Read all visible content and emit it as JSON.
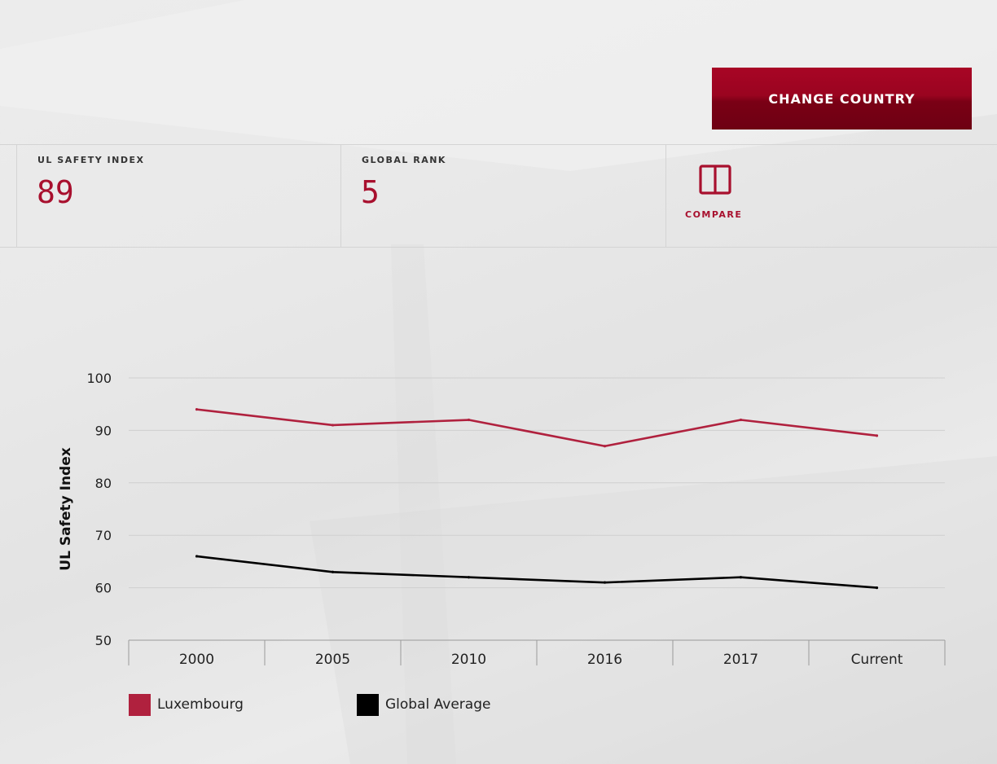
{
  "header": {
    "change_country_label": "CHANGE COUNTRY"
  },
  "stats": {
    "safety_index_label": "UL SAFETY INDEX",
    "safety_index_value": "89",
    "global_rank_label": "GLOBAL RANK",
    "global_rank_value": "5",
    "compare_label": "COMPARE"
  },
  "colors": {
    "accent": "#a8102e",
    "button_top": "#a80525",
    "button_bottom": "#6e0013",
    "luxembourg_line": "#b0213e",
    "global_line": "#000000"
  },
  "icons": {
    "compare": "compare-icon"
  },
  "chart_data": {
    "type": "line",
    "title": "",
    "xlabel": "",
    "ylabel": "UL Safety Index",
    "categories": [
      "2000",
      "2005",
      "2010",
      "2016",
      "2017",
      "Current"
    ],
    "ylim": [
      50,
      100
    ],
    "yticks": [
      "100",
      "90",
      "80",
      "70",
      "60",
      "50"
    ],
    "grid": true,
    "legend_position": "bottom-left",
    "series": [
      {
        "name": "Luxembourg",
        "values": [
          94,
          91,
          92,
          87,
          92,
          89
        ],
        "color": "#b0213e"
      },
      {
        "name": "Global Average",
        "values": [
          66,
          63,
          62,
          61,
          62,
          60
        ],
        "color": "#000000"
      }
    ]
  }
}
